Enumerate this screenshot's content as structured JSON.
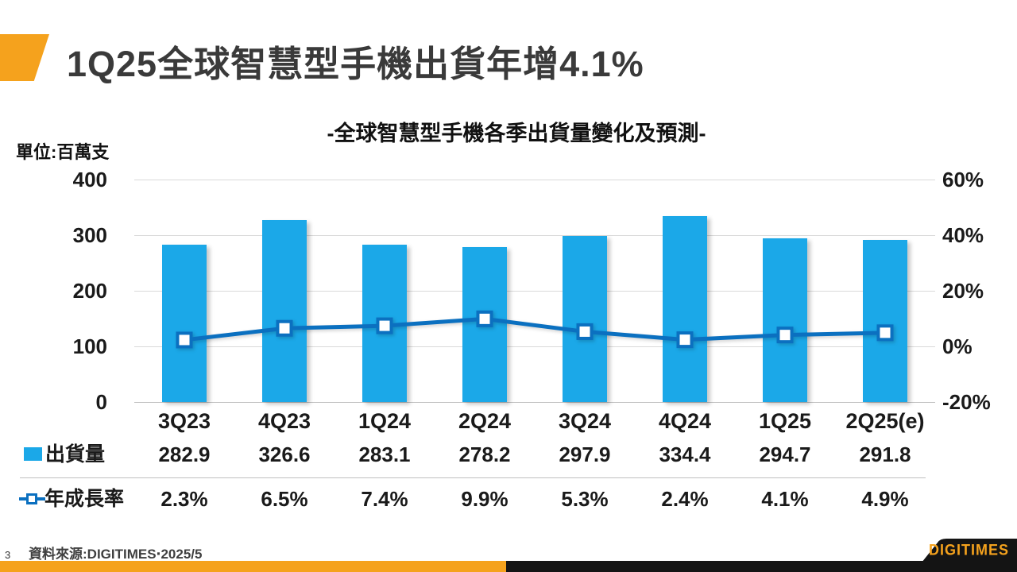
{
  "header": {
    "title": "1Q25全球智慧型手機出貨年增4.1%"
  },
  "chart": {
    "title": "-全球智慧型手機各季出貨量變化及預測-",
    "unit_label": "單位:百萬支"
  },
  "chart_data": {
    "type": "bar",
    "subtype": "combo-bar-line-dual-axis",
    "title": "-全球智慧型手機各季出貨量變化及預測-",
    "unit": "百萬支",
    "categories": [
      "3Q23",
      "4Q23",
      "1Q24",
      "2Q24",
      "3Q24",
      "4Q24",
      "1Q25",
      "2Q25(e)"
    ],
    "series": [
      {
        "name": "出貨量",
        "type": "bar",
        "axis": "left",
        "values": [
          282.9,
          326.6,
          283.1,
          278.2,
          297.9,
          334.4,
          294.7,
          291.8
        ],
        "labels": [
          "282.9",
          "326.6",
          "283.1",
          "278.2",
          "297.9",
          "334.4",
          "294.7",
          "291.8"
        ],
        "color": "#1BA8E8"
      },
      {
        "name": "年成長率",
        "type": "line",
        "axis": "right",
        "values": [
          2.3,
          6.5,
          7.4,
          9.9,
          5.3,
          2.4,
          4.1,
          4.9
        ],
        "labels": [
          "2.3%",
          "6.5%",
          "7.4%",
          "9.9%",
          "5.3%",
          "2.4%",
          "4.1%",
          "4.9%"
        ],
        "color": "#0B70C0",
        "marker": "square-white-fill"
      }
    ],
    "left_axis": {
      "min": 0,
      "max": 400,
      "ticks": [
        400,
        300,
        200,
        100,
        0
      ]
    },
    "right_axis": {
      "min": -20,
      "max": 60,
      "ticks": [
        "60%",
        "40%",
        "20%",
        "0%",
        "-20%"
      ],
      "tick_values": [
        60,
        40,
        20,
        0,
        -20
      ]
    },
    "grid": true,
    "legend_position": "table-rows-left"
  },
  "footer": {
    "page_number": "3",
    "source": "資料來源:DIGITIMES‧2025/5"
  },
  "logo": {
    "text": "DIGITIMES"
  },
  "colors": {
    "accent_orange": "#F5A21D",
    "bar_blue": "#1BA8E8",
    "line_blue": "#0B70C0",
    "strip_black": "#141414",
    "gridline": "#D9D9D9"
  }
}
